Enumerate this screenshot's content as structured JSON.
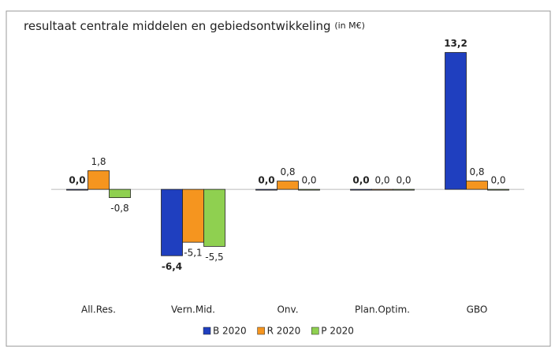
{
  "chart_data": {
    "type": "bar",
    "title": "resultaat centrale middelen en gebiedsontwikkeling",
    "subtitle": "(in M€)",
    "categories": [
      "All.Res.",
      "Vern.Mid.",
      "Onv.",
      "Plan.Optim.",
      "GBO"
    ],
    "series": [
      {
        "name": "B 2020",
        "color": "#1f3fbf",
        "values": [
          0.0,
          -6.4,
          0.0,
          0.0,
          13.2
        ],
        "value_labels": [
          "0,0",
          "-6,4",
          "0,0",
          "0,0",
          "13,2"
        ]
      },
      {
        "name": "R 2020",
        "color": "#f5951f",
        "values": [
          1.8,
          -5.1,
          0.8,
          0.0,
          0.8
        ],
        "value_labels": [
          "1,8",
          "-5,1",
          "0,8",
          "0,0",
          "0,8"
        ]
      },
      {
        "name": "P 2020",
        "color": "#8fd050",
        "values": [
          -0.8,
          -5.5,
          0.0,
          0.0,
          0.0
        ],
        "value_labels": [
          "-0,8",
          "-5,5",
          "0,0",
          "0,0",
          "0,0"
        ]
      }
    ],
    "ylim": [
      -10,
      14
    ],
    "legend": "bottom"
  }
}
